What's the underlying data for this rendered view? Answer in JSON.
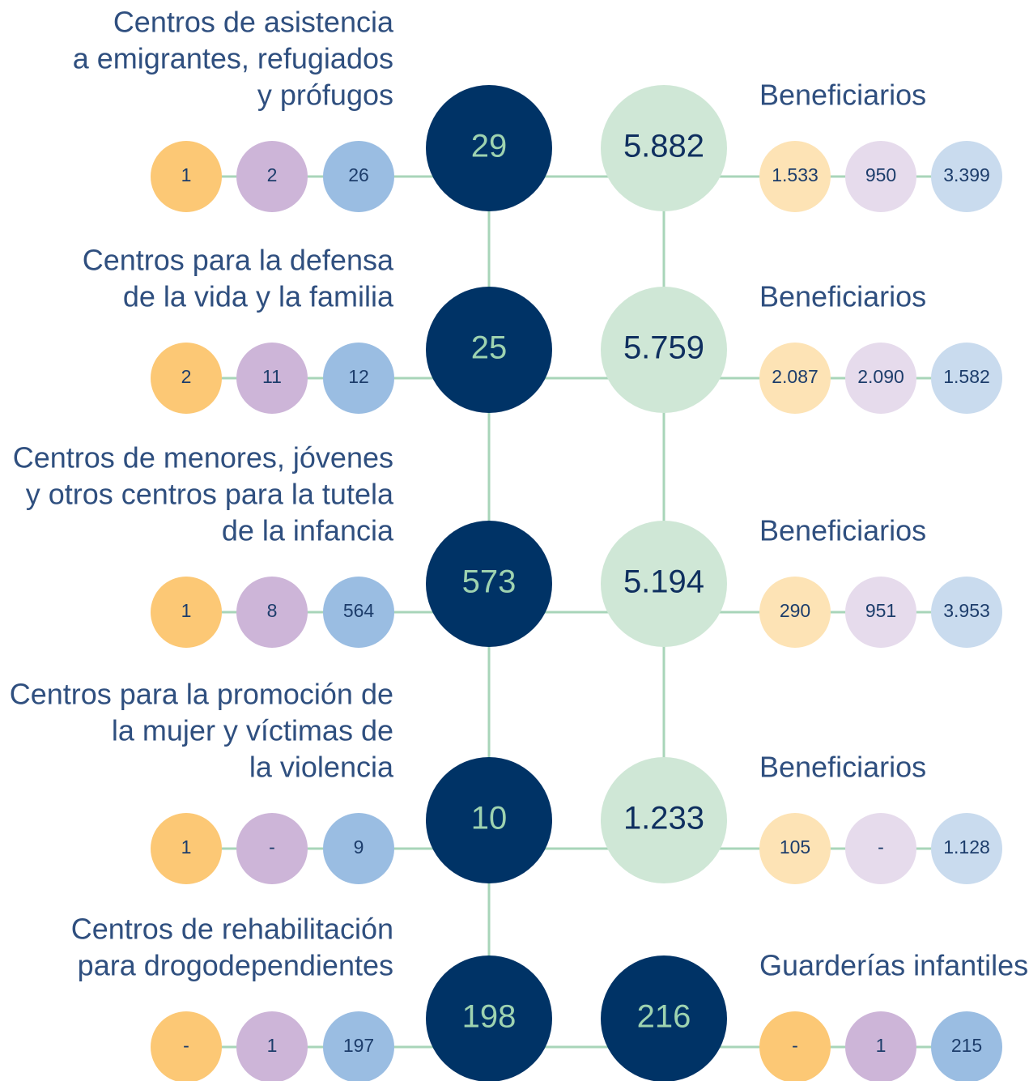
{
  "rows": [
    {
      "label": [
        "Centros de asistencia",
        "a emigrantes, refugiados",
        "y prófugos"
      ],
      "counts": [
        "1",
        "2",
        "26"
      ],
      "total": "29",
      "beneficiaries_label": "Beneficiarios",
      "beneficiaries": "5.882",
      "beneficiaries_breakdown": [
        "1.533",
        "950",
        "3.399"
      ]
    },
    {
      "label": [
        "Centros para la defensa",
        "de la vida y la familia"
      ],
      "counts": [
        "2",
        "11",
        "12"
      ],
      "total": "25",
      "beneficiaries_label": "Beneficiarios",
      "beneficiaries": "5.759",
      "beneficiaries_breakdown": [
        "2.087",
        "2.090",
        "1.582"
      ]
    },
    {
      "label": [
        "Centros de menores, jóvenes",
        "y otros centros para la tutela",
        "de la infancia"
      ],
      "counts": [
        "1",
        "8",
        "564"
      ],
      "total": "573",
      "beneficiaries_label": "Beneficiarios",
      "beneficiaries": "5.194",
      "beneficiaries_breakdown": [
        "290",
        "951",
        "3.953"
      ]
    },
    {
      "label": [
        "Centros para la promoción de",
        "la mujer y víctimas de",
        "la violencia"
      ],
      "counts": [
        "1",
        "-",
        "9"
      ],
      "total": "10",
      "beneficiaries_label": "Beneficiarios",
      "beneficiaries": "1.233",
      "beneficiaries_breakdown": [
        "105",
        "-",
        "1.128"
      ]
    },
    {
      "label": [
        "Centros de rehabilitación",
        "para drogodependientes"
      ],
      "counts": [
        "-",
        "1",
        "197"
      ],
      "total": "198",
      "beneficiaries_label": "Guarderías infantiles",
      "beneficiaries": "216",
      "beneficiaries_breakdown": [
        "-",
        "1",
        "215"
      ]
    }
  ]
}
